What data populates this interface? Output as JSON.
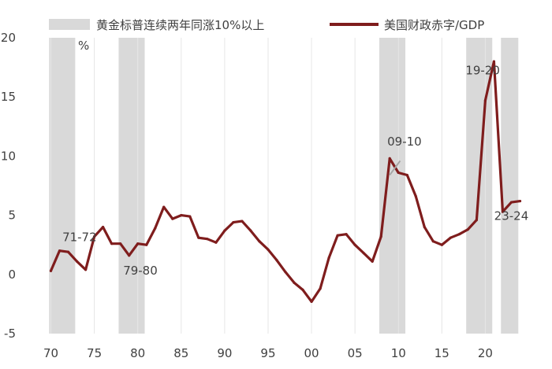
{
  "chart_data": {
    "type": "line",
    "unit_label": "%",
    "legend": {
      "shading_label": "黄金标普连续两年同涨10%以上",
      "line_label": "美国财政赤字/GDP"
    },
    "colors": {
      "line": "#7f1d1d",
      "shading": "#d9d9d9",
      "grid": "#e6e6e6",
      "text": "#404040"
    },
    "grid": "vertical",
    "xlim": [
      1969.5,
      2024.5
    ],
    "ylim": [
      -5,
      20
    ],
    "yticks": [
      -5,
      0,
      5,
      10,
      15,
      20
    ],
    "ytick_labels": [
      "-5",
      "0",
      "5",
      "10",
      "15",
      "20"
    ],
    "xticks": [
      1970,
      1975,
      1980,
      1985,
      1990,
      1995,
      2000,
      2005,
      2010,
      2015,
      2020
    ],
    "xtick_labels": [
      "70",
      "75",
      "80",
      "85",
      "90",
      "95",
      "00",
      "05",
      "10",
      "15",
      "20"
    ],
    "shaded_periods": [
      [
        1969.8,
        1972.8
      ],
      [
        1977.8,
        1980.8
      ],
      [
        2007.8,
        2010.8
      ],
      [
        2017.8,
        2020.8
      ],
      [
        2021.8,
        2023.8
      ]
    ],
    "series": [
      {
        "name": "美国财政赤字/GDP",
        "x": [
          1970,
          1971,
          1972,
          1973,
          1974,
          1975,
          1976,
          1977,
          1978,
          1979,
          1980,
          1981,
          1982,
          1983,
          1984,
          1985,
          1986,
          1987,
          1988,
          1989,
          1990,
          1991,
          1992,
          1993,
          1994,
          1995,
          1996,
          1997,
          1998,
          1999,
          2000,
          2001,
          2002,
          2003,
          2004,
          2005,
          2006,
          2007,
          2008,
          2009,
          2010,
          2011,
          2012,
          2013,
          2014,
          2015,
          2016,
          2017,
          2018,
          2019,
          2020,
          2021,
          2022,
          2023,
          2024
        ],
        "values": [
          0.3,
          2.0,
          1.9,
          1.1,
          0.4,
          3.2,
          4.0,
          2.6,
          2.6,
          1.6,
          2.6,
          2.5,
          3.9,
          5.7,
          4.7,
          5.0,
          4.9,
          3.1,
          3.0,
          2.7,
          3.7,
          4.4,
          4.5,
          3.7,
          2.8,
          2.1,
          1.2,
          0.2,
          -0.7,
          -1.3,
          -2.3,
          -1.2,
          1.4,
          3.3,
          3.4,
          2.5,
          1.8,
          1.1,
          3.2,
          9.8,
          8.6,
          8.4,
          6.6,
          4.0,
          2.8,
          2.5,
          3.1,
          3.4,
          3.8,
          4.6,
          14.7,
          18.0,
          5.3,
          6.1,
          6.2
        ]
      }
    ],
    "annotations": [
      {
        "text": "71-72",
        "x": 1973.3,
        "y": 2.8
      },
      {
        "text": "79-80",
        "x": 1980.3,
        "y": 0.0
      },
      {
        "text": "09-10",
        "x": 2010.7,
        "y": 10.9
      },
      {
        "text": "19-20",
        "x": 2019.7,
        "y": 16.9
      },
      {
        "text": "23-24",
        "x": 2023.0,
        "y": 4.6
      }
    ],
    "annotation_arrow": {
      "from": [
        2010.2,
        9.6
      ],
      "to": [
        2009.0,
        8.4
      ]
    }
  }
}
